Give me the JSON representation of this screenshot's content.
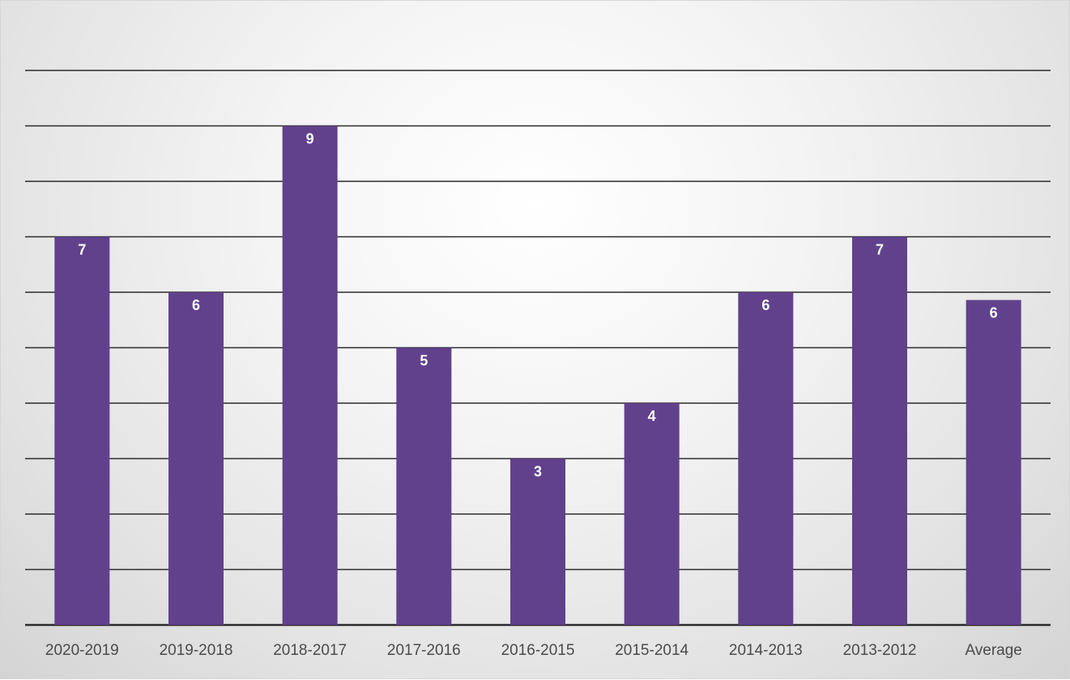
{
  "chart_data": {
    "type": "bar",
    "categories": [
      "2020-2019",
      "2019-2018",
      "2018-2017",
      "2017-2016",
      "2016-2015",
      "2015-2014",
      "2014-2013",
      "2013-2012",
      "Average"
    ],
    "values": [
      7,
      6,
      9,
      5,
      3,
      4,
      6,
      7,
      5.86
    ],
    "data_labels": [
      "7",
      "6",
      "9",
      "5",
      "3",
      "4",
      "6",
      "7",
      "6"
    ],
    "title": "",
    "xlabel": "",
    "ylabel": "",
    "ylim": [
      0,
      10
    ],
    "grid": true,
    "legend": "none",
    "bar_color": "#61418c",
    "label_color": "#ffffff"
  }
}
